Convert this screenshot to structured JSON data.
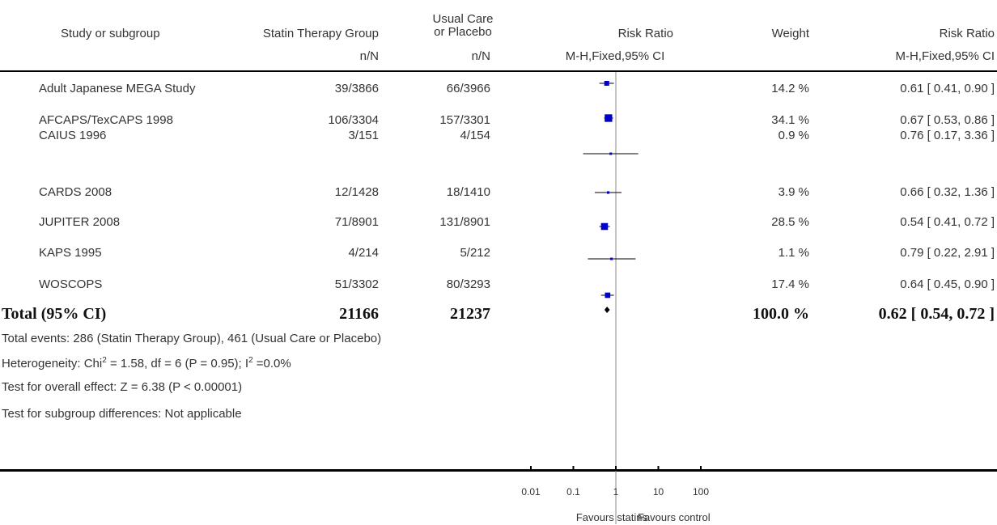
{
  "header": {
    "study": "Study or subgroup",
    "statin": "Statin Therapy Group",
    "usual_line1": "Usual Care",
    "usual_line2": "or Placebo",
    "rr": "Risk Ratio",
    "weight": "Weight",
    "rr2": "Risk Ratio",
    "statin_sub": "n/N",
    "usual_sub": "n/N",
    "rr_sub": "M-H,Fixed,95% CI",
    "rr2_sub": "M-H,Fixed,95% CI"
  },
  "rows": [
    {
      "study": "Adult Japanese MEGA Study",
      "statin": "39/3866",
      "usual": "66/3966",
      "weight": "14.2 %",
      "ci": "0.61 [ 0.41, 0.90 ]"
    },
    {
      "study": "AFCAPS/TexCAPS 1998",
      "statin": "106/3304",
      "usual": "157/3301",
      "weight": "34.1 %",
      "ci": "0.67 [ 0.53, 0.86 ]"
    },
    {
      "study": "CAIUS 1996",
      "statin": "3/151",
      "usual": "4/154",
      "weight": "0.9 %",
      "ci": "0.76 [ 0.17, 3.36 ]"
    },
    {
      "study": "CARDS 2008",
      "statin": "12/1428",
      "usual": "18/1410",
      "weight": "3.9 %",
      "ci": "0.66 [ 0.32, 1.36 ]"
    },
    {
      "study": "JUPITER 2008",
      "statin": "71/8901",
      "usual": "131/8901",
      "weight": "28.5 %",
      "ci": "0.54 [ 0.41, 0.72 ]"
    },
    {
      "study": "KAPS 1995",
      "statin": "4/214",
      "usual": "5/212",
      "weight": "1.1 %",
      "ci": "0.79 [ 0.22, 2.91 ]"
    },
    {
      "study": "WOSCOPS",
      "statin": "51/3302",
      "usual": "80/3293",
      "weight": "17.4 %",
      "ci": "0.64 [ 0.45, 0.90 ]"
    }
  ],
  "total": {
    "label": "Total (95% CI)",
    "statin": "21166",
    "usual": "21237",
    "weight": "100.0 %",
    "ci": "0.62 [ 0.54, 0.72 ]"
  },
  "notes": {
    "events": "Total events: 286 (Statin Therapy Group), 461 (Usual Care or Placebo)",
    "het_a": "Heterogeneity: Chi",
    "het_sup1": "2",
    "het_b": " = 1.58, df = 6 (P = 0.95); I",
    "het_sup2": "2",
    "het_c": " =0.0%",
    "overall": "Test for overall effect: Z = 6.38 (P < 0.00001)",
    "subgroup": "Test for subgroup differences: Not applicable"
  },
  "axis": {
    "favours_left": "Favours statins",
    "favours_right": "Favours control"
  },
  "colors": {
    "marker": "#0000cc",
    "line": "#000000",
    "text": "#333333"
  },
  "chart_data": {
    "type": "forest",
    "scale": "log",
    "xlim": [
      0.01,
      100
    ],
    "ticks": [
      0.01,
      0.1,
      1,
      10,
      100
    ],
    "tick_labels": [
      "0.01",
      "0.1",
      "1",
      "10",
      "100"
    ],
    "xlabel_left": "Favours statins",
    "xlabel_right": "Favours control",
    "studies": [
      {
        "name": "Adult Japanese MEGA Study",
        "rr": 0.61,
        "lo": 0.41,
        "hi": 0.9,
        "weight": 14.2
      },
      {
        "name": "AFCAPS/TexCAPS 1998",
        "rr": 0.67,
        "lo": 0.53,
        "hi": 0.86,
        "weight": 34.1
      },
      {
        "name": "CAIUS 1996",
        "rr": 0.76,
        "lo": 0.17,
        "hi": 3.36,
        "weight": 0.9
      },
      {
        "name": "CARDS 2008",
        "rr": 0.66,
        "lo": 0.32,
        "hi": 1.36,
        "weight": 3.9
      },
      {
        "name": "JUPITER 2008",
        "rr": 0.54,
        "lo": 0.41,
        "hi": 0.72,
        "weight": 28.5
      },
      {
        "name": "KAPS 1995",
        "rr": 0.79,
        "lo": 0.22,
        "hi": 2.91,
        "weight": 1.1
      },
      {
        "name": "WOSCOPS",
        "rr": 0.64,
        "lo": 0.45,
        "hi": 0.9,
        "weight": 17.4
      }
    ],
    "total": {
      "name": "Total (95% CI)",
      "rr": 0.62,
      "lo": 0.54,
      "hi": 0.72
    }
  }
}
